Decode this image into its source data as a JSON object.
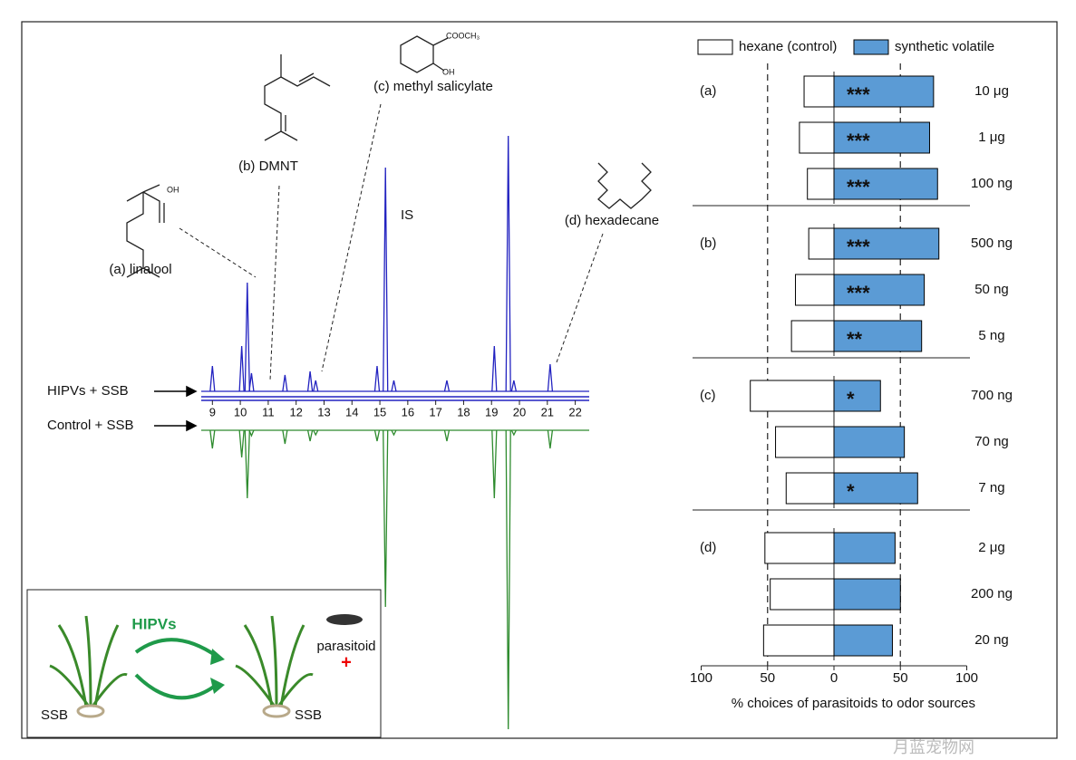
{
  "chart_data": [
    {
      "type": "chromatogram",
      "compound_labels": [
        "(a) linalool",
        "(b) DMNT",
        "(c) methyl salicylate",
        "(d) hexadecane"
      ],
      "structure_labels": [
        "OH",
        "COOCH₃",
        "OH"
      ],
      "peak_label": "IS",
      "x": [
        9.0,
        10.05,
        10.25,
        10.4,
        11.6,
        12.5,
        12.7,
        14.9,
        15.2,
        15.5,
        17.4,
        19.1,
        19.6,
        19.8,
        21.1
      ],
      "series": [
        {
          "name": "HIPVs + SSB",
          "color": "#2222c0",
          "values": [
            28,
            50,
            120,
            20,
            18,
            22,
            12,
            28,
            247,
            12,
            12,
            50,
            282,
            12,
            30
          ]
        },
        {
          "name": "Control + SSB",
          "color": "#2e8b2e",
          "values": [
            20,
            30,
            75,
            6,
            15,
            12,
            5,
            12,
            195,
            5,
            12,
            75,
            330,
            5,
            20
          ]
        }
      ],
      "xlim": [
        8.6,
        22.5
      ],
      "xticks": [
        9,
        10,
        11,
        12,
        13,
        14,
        15,
        16,
        17,
        18,
        19,
        20,
        21,
        22
      ],
      "inset": {
        "arrow_label": "HIPVs",
        "insect_label": "parasitoid",
        "plus": "+",
        "plant_labels": [
          "SSB",
          "SSB"
        ]
      }
    },
    {
      "type": "bar",
      "orientation": "horizontal",
      "groups": [
        {
          "label": "(a)",
          "categories": [
            "10 μg",
            "1 μg",
            "100 ng"
          ]
        },
        {
          "label": "(b)",
          "categories": [
            "500 ng",
            "50 ng",
            "5 ng"
          ]
        },
        {
          "label": "(c)",
          "categories": [
            "700 ng",
            "70 ng",
            "7 ng"
          ]
        },
        {
          "label": "(d)",
          "categories": [
            "2 μg",
            "200 ng",
            "20 ng"
          ]
        }
      ],
      "series": [
        {
          "name": "hexane (control)",
          "color": "#ffffff",
          "side": "left",
          "values": [
            22.5,
            26,
            20,
            19,
            29,
            32,
            63,
            44,
            36,
            52,
            48,
            53
          ]
        },
        {
          "name": "synthetic volatile",
          "color": "#5b9bd5",
          "side": "right",
          "values": [
            75,
            72,
            78,
            79,
            68,
            66,
            35,
            53,
            63,
            46,
            50,
            44
          ]
        }
      ],
      "significance": [
        "***",
        "***",
        "***",
        "***",
        "***",
        "**",
        "*",
        null,
        "*",
        null,
        null,
        null
      ],
      "xlim": [
        -100,
        100
      ],
      "xticks": [
        {
          "value": -100,
          "label": "100"
        },
        {
          "value": -50,
          "label": "50"
        },
        0,
        50,
        100
      ],
      "reference_lines": [
        -50,
        50
      ],
      "xlabel": "% choices of parasitoids to odor sources"
    }
  ],
  "watermark": "月蓝宠物网"
}
